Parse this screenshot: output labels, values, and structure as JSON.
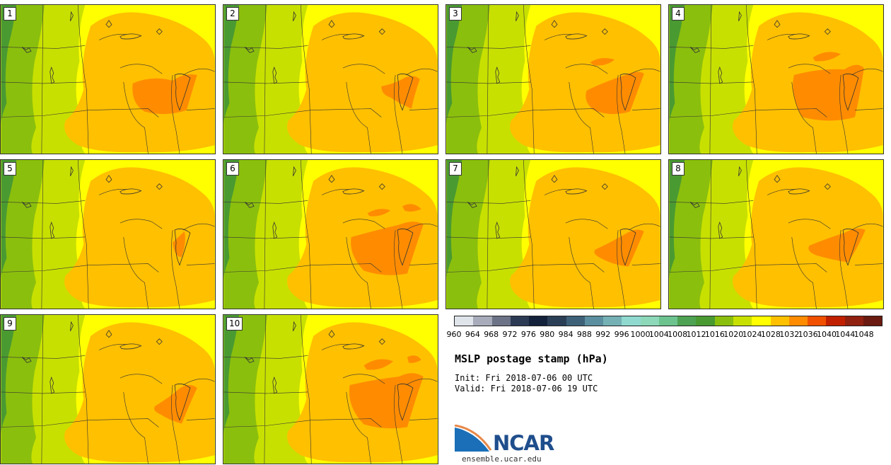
{
  "figure": {
    "title": "MSLP postage stamp (hPa)",
    "init_text": "Init: Fri 2018-07-06 00 UTC",
    "valid_text": "Valid: Fri 2018-07-06 19 UTC"
  },
  "stamps": [
    {
      "label": "1"
    },
    {
      "label": "2"
    },
    {
      "label": "3"
    },
    {
      "label": "4"
    },
    {
      "label": "5"
    },
    {
      "label": "6"
    },
    {
      "label": "7"
    },
    {
      "label": "8"
    },
    {
      "label": "9"
    },
    {
      "label": "10"
    }
  ],
  "colorbar": {
    "levels": [
      "960",
      "964",
      "968",
      "972",
      "976",
      "980",
      "984",
      "988",
      "992",
      "996",
      "1000",
      "1004",
      "1008",
      "1012",
      "1016",
      "1020",
      "1024",
      "1028",
      "1032",
      "1036",
      "1040",
      "1044",
      "1048"
    ],
    "colors": [
      "#dfe3ea",
      "#a7abba",
      "#6c7386",
      "#2d3a54",
      "#13213a",
      "#2a3f55",
      "#3e6178",
      "#5b8e9e",
      "#74b0b4",
      "#8fd9cf",
      "#8cd8b9",
      "#6cc38e",
      "#4ea253",
      "#4a9a32",
      "#8bbf0d",
      "#c8e000",
      "#ffff00",
      "#ffc000",
      "#ff8c00",
      "#f05000",
      "#c02000",
      "#902010",
      "#6a1a10"
    ]
  },
  "logo": {
    "name": "NCAR",
    "url": "ensemble.ucar.edu",
    "colors": {
      "blue": "#1a6fb8",
      "dark": "#1f4e8c",
      "orange": "#e8894a"
    }
  },
  "map_colors": {
    "c1016": "#4a9a32",
    "c1020": "#8bbf0d",
    "c1024": "#c8e000",
    "c1028": "#ffff00",
    "c1032": "#ffc000",
    "c1036": "#ff8c00",
    "lines": "#333333"
  }
}
